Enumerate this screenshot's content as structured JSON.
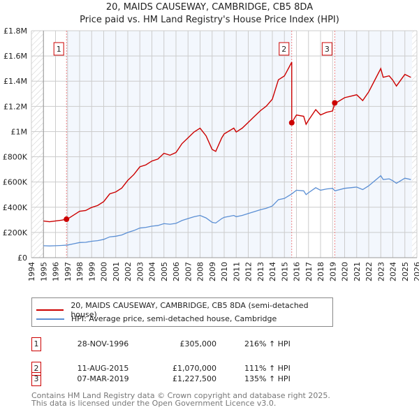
{
  "chart_data": {
    "type": "line",
    "title": "20, MAIDS CAUSEWAY, CAMBRIDGE, CB5 8DA",
    "subtitle": "Price paid vs. HM Land Registry's House Price Index (HPI)",
    "xlim": [
      1994,
      2026
    ],
    "ylim": [
      0,
      1800000
    ],
    "x_ticks": [
      "1994",
      "1995",
      "1996",
      "1997",
      "1998",
      "1999",
      "2000",
      "2001",
      "2002",
      "2003",
      "2004",
      "2005",
      "2006",
      "2007",
      "2008",
      "2009",
      "2010",
      "2011",
      "2012",
      "2013",
      "2014",
      "2015",
      "2016",
      "2017",
      "2018",
      "2019",
      "2020",
      "2021",
      "2022",
      "2023",
      "2024",
      "2025",
      "2026"
    ],
    "y_ticks": [
      {
        "v": 0,
        "l": "£0"
      },
      {
        "v": 200000,
        "l": "£200K"
      },
      {
        "v": 400000,
        "l": "£400K"
      },
      {
        "v": 600000,
        "l": "£600K"
      },
      {
        "v": 800000,
        "l": "£800K"
      },
      {
        "v": 1000000,
        "l": "£1M"
      },
      {
        "v": 1200000,
        "l": "£1.2M"
      },
      {
        "v": 1400000,
        "l": "£1.4M"
      },
      {
        "v": 1600000,
        "l": "£1.6M"
      },
      {
        "v": 1800000,
        "l": "£1.8M"
      }
    ],
    "grid": true,
    "colors": {
      "property": "#cc0000",
      "hpi": "#5b8fd4",
      "shade": "#f3f7fd"
    },
    "hpi_series": [
      [
        1995,
        95000
      ],
      [
        1995.5,
        93000
      ],
      [
        1996,
        95000
      ],
      [
        1996.5,
        97000
      ],
      [
        1997,
        100000
      ],
      [
        1997.5,
        110000
      ],
      [
        1998,
        120000
      ],
      [
        1998.5,
        122000
      ],
      [
        1999,
        130000
      ],
      [
        1999.5,
        135000
      ],
      [
        2000,
        145000
      ],
      [
        2000.5,
        165000
      ],
      [
        2001,
        170000
      ],
      [
        2001.5,
        180000
      ],
      [
        2002,
        200000
      ],
      [
        2002.5,
        215000
      ],
      [
        2003,
        235000
      ],
      [
        2003.5,
        240000
      ],
      [
        2004,
        250000
      ],
      [
        2004.5,
        255000
      ],
      [
        2005,
        270000
      ],
      [
        2005.5,
        265000
      ],
      [
        2006,
        272000
      ],
      [
        2006.5,
        295000
      ],
      [
        2007,
        310000
      ],
      [
        2007.5,
        325000
      ],
      [
        2008,
        335000
      ],
      [
        2008.5,
        315000
      ],
      [
        2009,
        280000
      ],
      [
        2009.3,
        275000
      ],
      [
        2009.8,
        310000
      ],
      [
        2010,
        320000
      ],
      [
        2010.8,
        335000
      ],
      [
        2011,
        325000
      ],
      [
        2011.5,
        335000
      ],
      [
        2012,
        350000
      ],
      [
        2012.5,
        365000
      ],
      [
        2013,
        380000
      ],
      [
        2013.5,
        392000
      ],
      [
        2014,
        410000
      ],
      [
        2014.5,
        460000
      ],
      [
        2015,
        470000
      ],
      [
        2015.6,
        505000
      ],
      [
        2016,
        535000
      ],
      [
        2016.6,
        530000
      ],
      [
        2016.8,
        500000
      ],
      [
        2017,
        515000
      ],
      [
        2017.6,
        555000
      ],
      [
        2018,
        535000
      ],
      [
        2018.5,
        545000
      ],
      [
        2019,
        550000
      ],
      [
        2019.2,
        530000
      ],
      [
        2020,
        550000
      ],
      [
        2020.5,
        555000
      ],
      [
        2021,
        560000
      ],
      [
        2021.5,
        540000
      ],
      [
        2022,
        570000
      ],
      [
        2022.5,
        610000
      ],
      [
        2023,
        650000
      ],
      [
        2023.2,
        620000
      ],
      [
        2023.7,
        625000
      ],
      [
        2024,
        610000
      ],
      [
        2024.3,
        590000
      ],
      [
        2025,
        630000
      ],
      [
        2025.5,
        620000
      ]
    ],
    "sales": [
      {
        "id": "1",
        "x": 1996.91,
        "date": "28-NOV-1996",
        "price_value": 305000,
        "price": "£305,000",
        "hpi": "216% ↑ HPI"
      },
      {
        "id": "2",
        "x": 2015.61,
        "date": "11-AUG-2015",
        "price_value": 1070000,
        "price": "£1,070,000",
        "hpi": "111% ↑ HPI"
      },
      {
        "id": "3",
        "x": 2019.18,
        "date": "07-MAR-2019",
        "price_value": 1227500,
        "price": "£1,227,500",
        "hpi": "135% ↑ HPI"
      }
    ],
    "legend": {
      "property": "20, MAIDS CAUSEWAY, CAMBRIDGE, CB5 8DA (semi-detached house)",
      "hpi": "HPI: Average price, semi-detached house, Cambridge"
    }
  },
  "footer": {
    "line1": "Contains HM Land Registry data © Crown copyright and database right 2025.",
    "line2": "This data is licensed under the Open Government Licence v3.0."
  }
}
